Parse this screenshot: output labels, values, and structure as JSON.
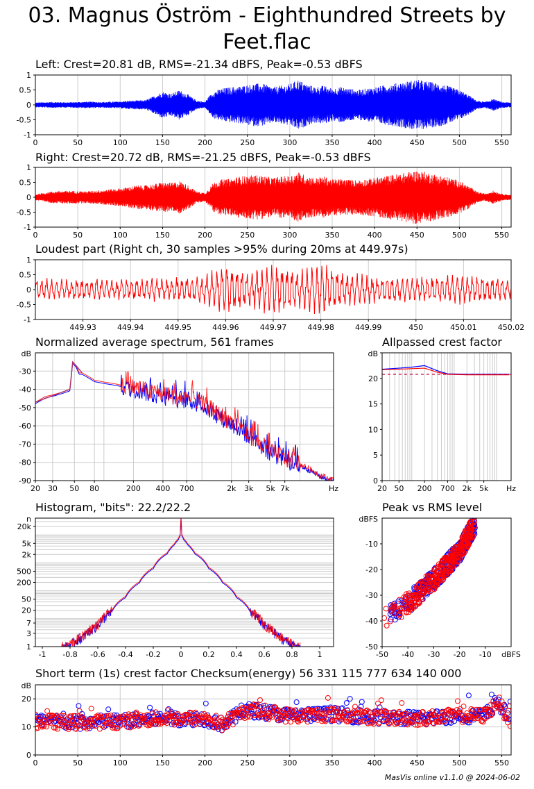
{
  "page": {
    "title_line1": "03. Magnus Öström - Eighthundred Streets by",
    "title_line2": "Feet.flac",
    "footer": "MasVis online v1.1.0 @ 2024-06-02"
  },
  "colors": {
    "left": "#0000ff",
    "right": "#ff0000",
    "blend": "#b0306a",
    "grid": "#cccccc",
    "ref": "#cc2255"
  },
  "chart_data": [
    {
      "id": "left",
      "type": "area",
      "title": "Left: Crest=20.81 dB, RMS=-21.34 dBFS, Peak=-0.53 dBFS",
      "xlim": [
        0,
        561
      ],
      "ylim": [
        -1,
        1
      ],
      "xticks": [
        0,
        50,
        100,
        150,
        200,
        250,
        300,
        350,
        400,
        450,
        500,
        550
      ],
      "yticks": [
        1,
        0.5,
        0,
        -0.5,
        -1
      ],
      "envelope": {
        "x": [
          0,
          20,
          40,
          60,
          80,
          100,
          110,
          120,
          130,
          140,
          150,
          160,
          170,
          180,
          190,
          200,
          205,
          210,
          220,
          230,
          240,
          250,
          260,
          270,
          280,
          290,
          300,
          310,
          320,
          330,
          340,
          350,
          360,
          370,
          380,
          390,
          400,
          410,
          420,
          430,
          440,
          450,
          460,
          470,
          480,
          490,
          500,
          510,
          520,
          530,
          540,
          550,
          561
        ],
        "amp": [
          0.08,
          0.1,
          0.09,
          0.11,
          0.1,
          0.12,
          0.14,
          0.15,
          0.16,
          0.3,
          0.45,
          0.38,
          0.5,
          0.35,
          0.15,
          0.1,
          0.3,
          0.45,
          0.55,
          0.6,
          0.62,
          0.68,
          0.72,
          0.7,
          0.6,
          0.65,
          0.7,
          0.85,
          0.7,
          0.6,
          0.65,
          0.55,
          0.6,
          0.55,
          0.5,
          0.55,
          0.6,
          0.65,
          0.7,
          0.75,
          0.8,
          0.85,
          0.8,
          0.75,
          0.7,
          0.6,
          0.5,
          0.35,
          0.15,
          0.1,
          0.2,
          0.1,
          0.08
        ]
      }
    },
    {
      "id": "right",
      "type": "area",
      "title": "Right: Crest=20.72 dB, RMS=-21.25 dBFS, Peak=-0.53 dBFS",
      "xlim": [
        0,
        561
      ],
      "ylim": [
        -1,
        1
      ],
      "xticks": [
        0,
        50,
        100,
        150,
        200,
        250,
        300,
        350,
        400,
        450,
        500,
        550
      ],
      "yticks": [
        1,
        0.5,
        0,
        -0.5,
        -1
      ],
      "envelope": {
        "x": [
          0,
          20,
          40,
          60,
          80,
          100,
          110,
          120,
          130,
          140,
          150,
          160,
          170,
          180,
          190,
          200,
          205,
          210,
          220,
          230,
          240,
          250,
          260,
          270,
          280,
          290,
          300,
          310,
          320,
          330,
          340,
          350,
          360,
          370,
          380,
          390,
          400,
          410,
          420,
          430,
          440,
          450,
          460,
          470,
          480,
          490,
          500,
          510,
          520,
          530,
          540,
          550,
          561
        ],
        "amp": [
          0.1,
          0.2,
          0.22,
          0.2,
          0.25,
          0.3,
          0.35,
          0.4,
          0.4,
          0.45,
          0.5,
          0.48,
          0.55,
          0.4,
          0.2,
          0.15,
          0.3,
          0.5,
          0.6,
          0.62,
          0.7,
          0.72,
          0.75,
          0.72,
          0.65,
          0.7,
          0.72,
          0.85,
          0.72,
          0.65,
          0.7,
          0.6,
          0.62,
          0.6,
          0.58,
          0.62,
          0.65,
          0.7,
          0.75,
          0.8,
          0.85,
          0.9,
          0.85,
          0.78,
          0.72,
          0.65,
          0.55,
          0.4,
          0.2,
          0.12,
          0.22,
          0.12,
          0.08
        ]
      }
    },
    {
      "id": "loudest",
      "type": "line",
      "title": "Loudest part (Right ch, 30 samples >95% during 20ms at 449.97s)",
      "xlim": [
        449.92,
        450.02
      ],
      "ylim": [
        -1,
        1
      ],
      "xticks": [
        449.93,
        449.94,
        449.95,
        449.96,
        449.97,
        449.98,
        449.99,
        450,
        450.01,
        450.02
      ],
      "xticklabels": [
        "449.93",
        "449.94",
        "449.95",
        "449.96",
        "449.97",
        "449.98",
        "449.99",
        "450",
        "450.01",
        "450.02"
      ],
      "yticks": [
        1,
        0.5,
        0,
        -0.5,
        -1
      ],
      "envelope": {
        "x": [
          449.92,
          449.93,
          449.94,
          449.95,
          449.955,
          449.96,
          449.965,
          449.97,
          449.975,
          449.98,
          449.985,
          449.99,
          450,
          450.01,
          450.02
        ],
        "amp": [
          0.35,
          0.35,
          0.35,
          0.4,
          0.45,
          0.85,
          0.6,
          0.9,
          0.65,
          0.95,
          0.55,
          0.45,
          0.4,
          0.5,
          0.35
        ]
      }
    },
    {
      "id": "spectrum",
      "type": "line",
      "title": "Normalized average spectrum, 561 frames",
      "ylabel": "dB",
      "xscale": "log",
      "xlim": [
        20,
        22000
      ],
      "ylim": [
        -90,
        -20
      ],
      "xticks": [
        20,
        30,
        50,
        80,
        200,
        400,
        700,
        2000,
        3000,
        5000,
        7000
      ],
      "xticklabels": [
        "20",
        "30",
        "50",
        "80",
        "200",
        "400",
        "700",
        "2k",
        "3k",
        "5k",
        "7k"
      ],
      "xunit": "Hz",
      "yticks": [
        -30,
        -40,
        -50,
        -60,
        -70,
        -80,
        -90
      ],
      "series": [
        {
          "x": [
            20,
            25,
            30,
            35,
            40,
            45,
            48,
            52,
            56,
            60,
            70,
            80,
            100,
            130,
            160,
            200,
            250,
            300,
            400,
            500,
            700,
            1000,
            1500,
            2000,
            3000,
            4000,
            5000,
            7000,
            10000,
            13000,
            16000,
            20000
          ],
          "y": [
            -47,
            -44,
            -43,
            -42,
            -41,
            -40,
            -25,
            -27,
            -31,
            -31,
            -33,
            -35,
            -36,
            -37,
            -38,
            -39,
            -40,
            -42,
            -43,
            -44,
            -45,
            -48,
            -54,
            -58,
            -65,
            -70,
            -74,
            -78,
            -81,
            -84,
            -87,
            -89
          ]
        }
      ],
      "shared_line": {
        "x": [
          20,
          40,
          45,
          48,
          52,
          60
        ],
        "y": [
          -47,
          -41,
          -40,
          -25,
          -27,
          -31
        ]
      }
    },
    {
      "id": "crest",
      "type": "line",
      "title": "Allpassed crest factor",
      "ylabel": "dB",
      "xscale": "log",
      "xlim": [
        20,
        22000
      ],
      "ylim": [
        0,
        25
      ],
      "xticks": [
        20,
        50,
        200,
        700,
        2000,
        5000
      ],
      "xticklabels": [
        "20",
        "50",
        "200",
        "700",
        "2k",
        "5k"
      ],
      "xunit": "Hz",
      "yticks": [
        25,
        20,
        15,
        10,
        5,
        0
      ],
      "yticklabels": [
        "",
        "20",
        "15",
        "10",
        "5",
        "0"
      ],
      "series": [
        {
          "name": "",
          "color": "blue",
          "x": [
            20,
            50,
            100,
            200,
            400,
            700,
            2000,
            5000,
            20000
          ],
          "y": [
            21.8,
            22,
            22.2,
            22.5,
            21.5,
            20.9,
            20.8,
            20.8,
            20.8
          ]
        },
        {
          "name": "",
          "color": "red",
          "x": [
            20,
            50,
            100,
            200,
            400,
            700,
            2000,
            5000,
            20000
          ],
          "y": [
            21.7,
            21.8,
            21.9,
            22,
            21.2,
            20.8,
            20.7,
            20.7,
            20.7
          ]
        }
      ],
      "reference": 20.8
    },
    {
      "id": "histogram",
      "type": "line",
      "title": "Histogram, \"bits\": 22.2/22.2",
      "ylabel": "n",
      "xlim": [
        -1.05,
        1.1
      ],
      "yscale": "log",
      "ylim": [
        1,
        40000
      ],
      "xticks": [
        -1,
        -0.8,
        -0.6,
        -0.4,
        -0.2,
        0,
        0.2,
        0.4,
        0.6,
        0.8,
        1
      ],
      "yticks": [
        20000,
        5000,
        2000,
        500,
        200,
        50,
        20,
        7,
        3,
        1
      ],
      "yticklabels": [
        "20k",
        "5k",
        "2k",
        "500",
        "200",
        "50",
        "20",
        "7",
        "3",
        "1"
      ],
      "profile": {
        "x": [
          0,
          0.005,
          0.02,
          0.05,
          0.1,
          0.2,
          0.3,
          0.4,
          0.5,
          0.6,
          0.7,
          0.8,
          0.83,
          0.85
        ],
        "n": [
          40000,
          10000,
          7000,
          4500,
          2200,
          650,
          200,
          60,
          18,
          6,
          2.5,
          1.2,
          1,
          1
        ]
      }
    },
    {
      "id": "peakrms",
      "type": "scatter",
      "title": "Peak vs RMS level",
      "ylabel": "dBFS",
      "xlabel": "dBFS",
      "xlim": [
        -50,
        0
      ],
      "ylim": [
        -50,
        0
      ],
      "xticks": [
        -50,
        -40,
        -30,
        -20,
        -10
      ],
      "yticks": [
        -10,
        -20,
        -30,
        -40,
        -50
      ],
      "trend": {
        "x": [
          -50,
          -40,
          -30,
          -20,
          -14
        ],
        "y": [
          -40,
          -33,
          -24,
          -13,
          -2
        ]
      }
    },
    {
      "id": "shortcrest",
      "type": "scatter",
      "title": "Short term (1s) crest factor    Checksum(energy) 56 331 115 777 634 140 000",
      "ylabel": "dB",
      "xlim": [
        0,
        561
      ],
      "ylim": [
        0,
        25
      ],
      "xticks": [
        0,
        50,
        100,
        150,
        200,
        250,
        300,
        350,
        400,
        450,
        500,
        550
      ],
      "yticks": [
        20,
        10,
        0
      ],
      "trend": {
        "x": [
          0,
          50,
          100,
          150,
          200,
          220,
          250,
          280,
          300,
          350,
          400,
          450,
          500,
          530,
          545,
          561
        ],
        "y": [
          12,
          11.5,
          12,
          13,
          13,
          11,
          16,
          15,
          14,
          14.5,
          13.5,
          13,
          14,
          14,
          19,
          12
        ]
      }
    }
  ]
}
